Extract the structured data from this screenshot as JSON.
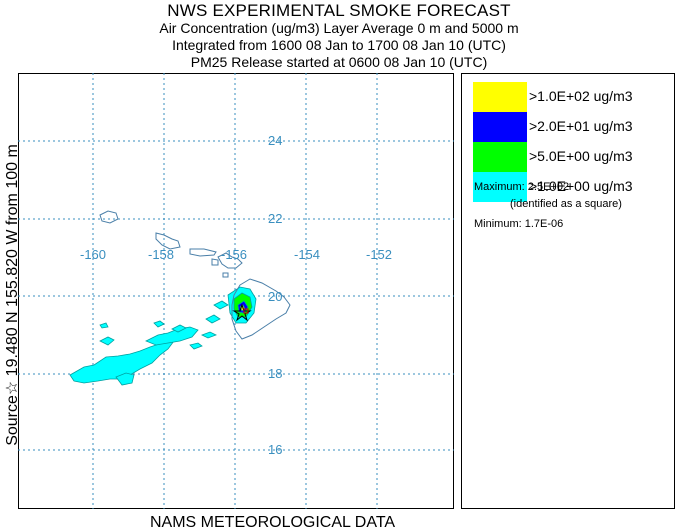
{
  "header": {
    "title": "NWS EXPERIMENTAL SMOKE FORECAST",
    "line1": "Air Concentration (ug/m3) Layer Average    0 m and  5000 m",
    "line2": "Integrated from 1600 08 Jan to 1700 08 Jan 10 (UTC)",
    "line3": "PM25 Release started at 0600 08 Jan 10 (UTC)"
  },
  "side_label": "Source☆ 19.480 N 155.820 W     from  100 m",
  "map": {
    "longitude_labels": [
      "-160",
      "-158",
      "-156",
      "-154",
      "-152"
    ],
    "latitude_labels": [
      "24",
      "22",
      "20",
      "18",
      "16"
    ],
    "grid_color": "#3a8fbf",
    "coast_color": "#4a7fa8"
  },
  "legend": [
    {
      "label": ">1.0E+02 ug/m3",
      "color": "#ffff00"
    },
    {
      "label": ">2.0E+01 ug/m3",
      "color": "#0000ff"
    },
    {
      "label": ">5.0E+00 ug/m3",
      "color": "#00ff00"
    },
    {
      "label": ">1.0E+00 ug/m3",
      "color": "#00ffff"
    }
  ],
  "stats": {
    "maximum": "Maximum: 2.5E+02",
    "max_note": "(identified as a square)",
    "minimum": "Minimum: 1.7E-06"
  },
  "footer": "NAMS METEOROLOGICAL DATA"
}
